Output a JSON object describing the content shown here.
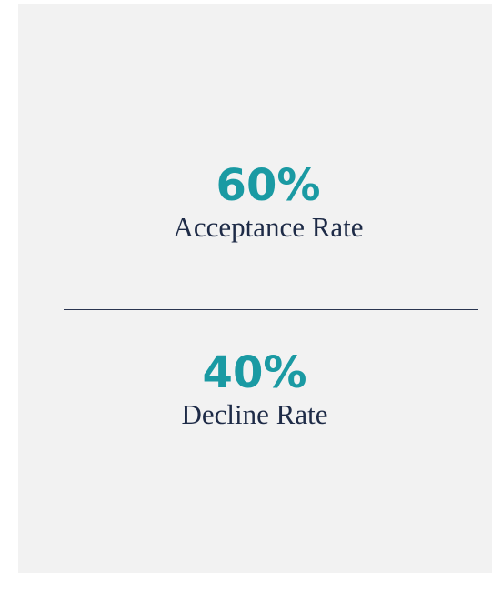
{
  "stats": [
    {
      "value": "60%",
      "label": "Acceptance Rate"
    },
    {
      "value": "40%",
      "label": "Decline Rate"
    }
  ]
}
